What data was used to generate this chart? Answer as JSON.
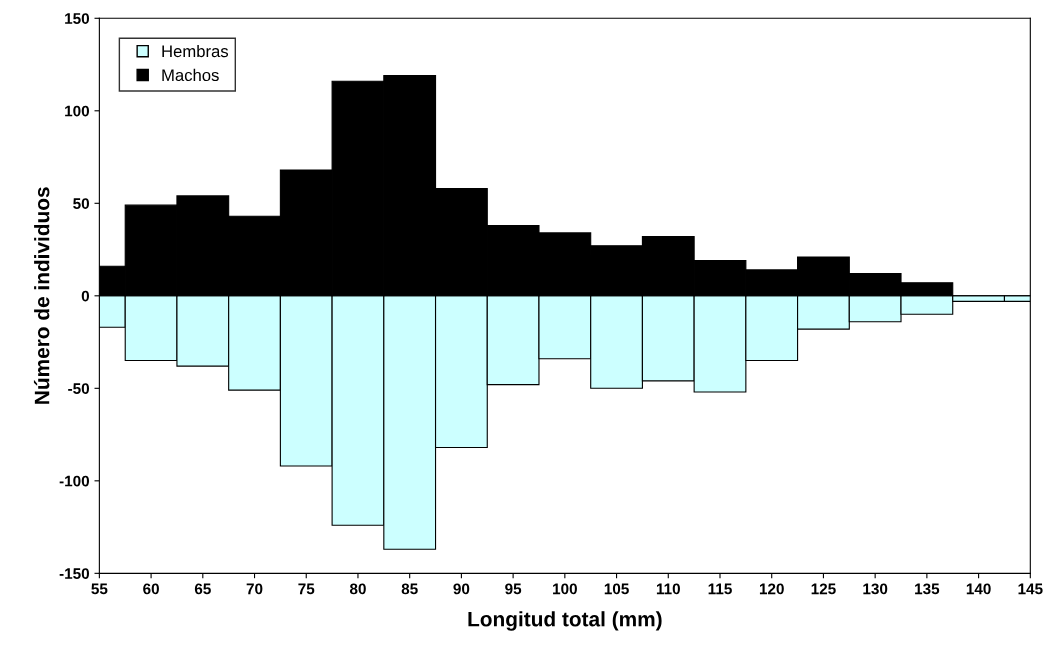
{
  "chart_data": {
    "type": "bar",
    "xlabel": "Longitud total (mm)",
    "ylabel": "Número de individuos",
    "x": [
      55,
      60,
      65,
      70,
      75,
      80,
      85,
      90,
      95,
      100,
      105,
      110,
      115,
      120,
      125,
      130,
      135,
      140,
      145
    ],
    "series": [
      {
        "name": "Hembras",
        "color": "#ccffff",
        "values": [
          -17,
          -35,
          -38,
          -51,
          -92,
          -124,
          -137,
          -82,
          -48,
          -34,
          -50,
          -46,
          -52,
          -35,
          -18,
          -14,
          -10,
          -3,
          -3
        ]
      },
      {
        "name": "Machos",
        "color": "#000000",
        "values": [
          16,
          49,
          54,
          43,
          68,
          116,
          119,
          58,
          38,
          34,
          27,
          32,
          19,
          14,
          21,
          12,
          7,
          0,
          0
        ]
      }
    ],
    "xlim": [
      55,
      145
    ],
    "xticks": [
      55,
      60,
      65,
      70,
      75,
      80,
      85,
      90,
      95,
      100,
      105,
      110,
      115,
      120,
      125,
      130,
      135,
      140,
      145
    ],
    "ylim": [
      -150,
      150
    ],
    "yticks": [
      -150,
      -100,
      -50,
      0,
      50,
      100,
      150
    ],
    "grid": false,
    "legend": "top left",
    "stacked": true
  }
}
